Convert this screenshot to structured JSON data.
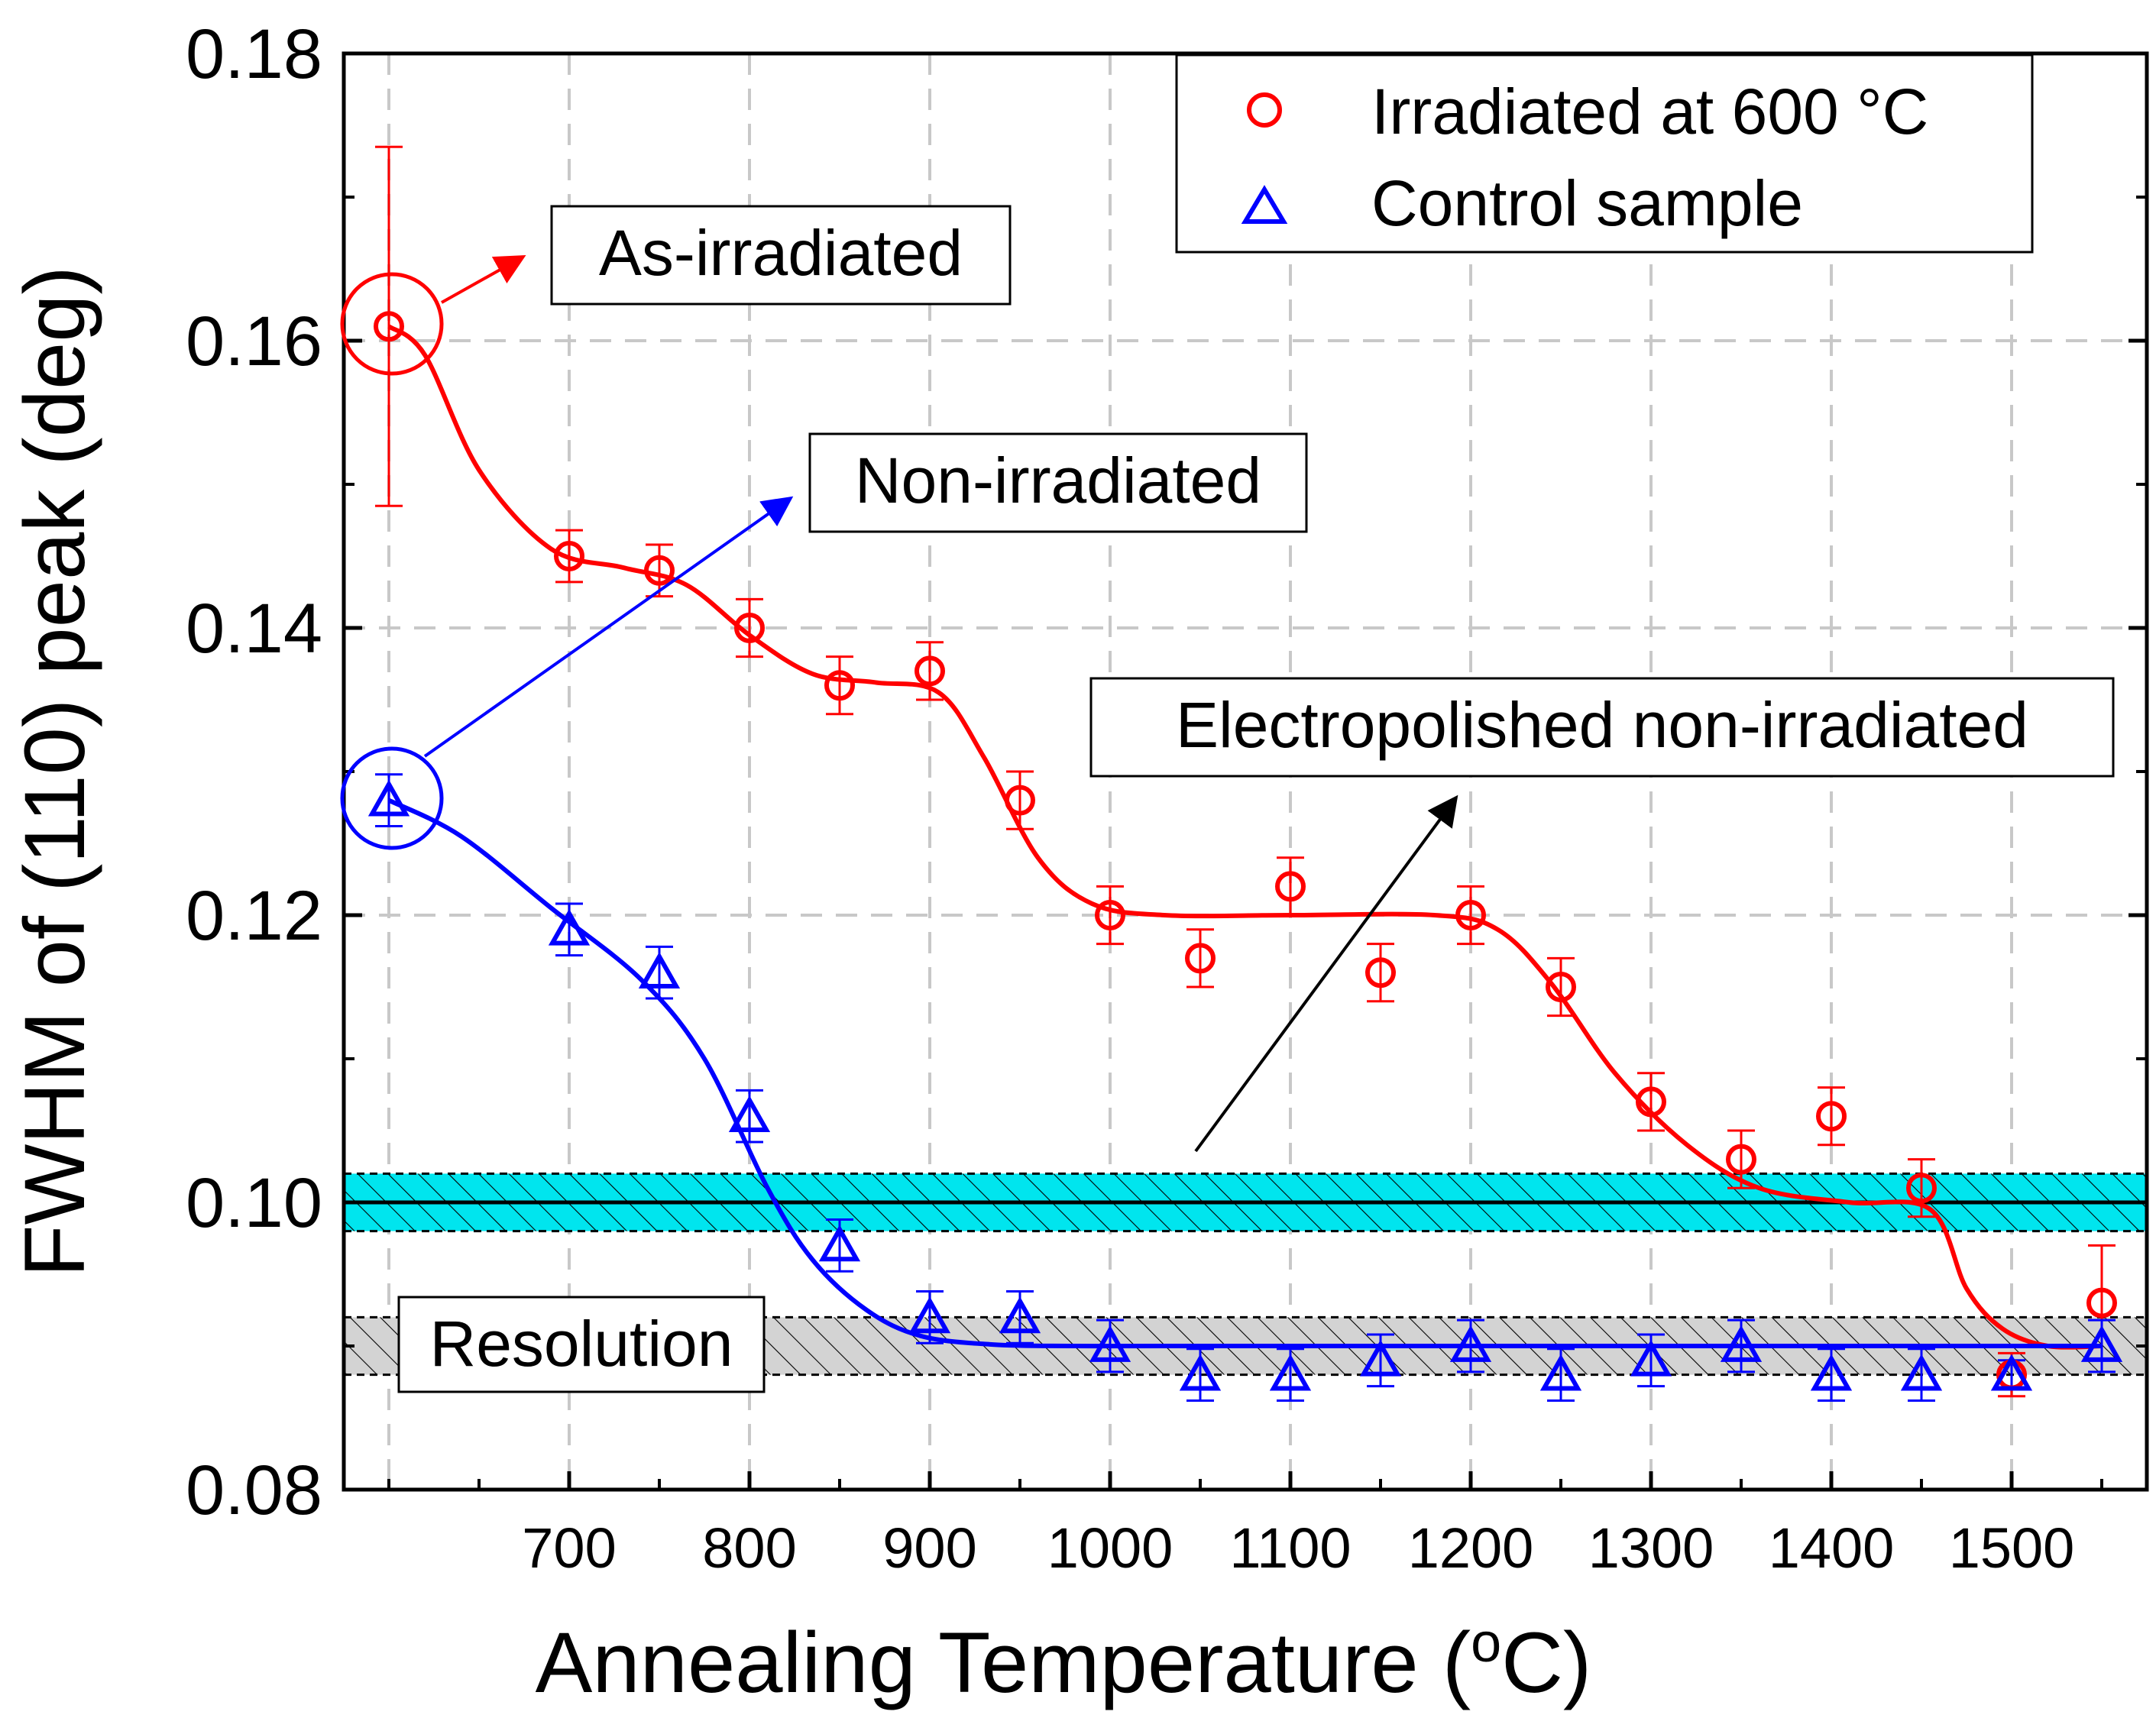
{
  "chart_data": {
    "type": "scatter",
    "xlabel": "Annealing Temperature (",
    "xlabel_sup": "o",
    "xlabel_end": "C)",
    "ylabel": "FWHM of (110) peak (deg)",
    "xlim": [
      575,
      1575
    ],
    "ylim": [
      0.08,
      0.18
    ],
    "x_ticks": [
      700,
      800,
      900,
      1000,
      1100,
      1200,
      1300,
      1400,
      1500
    ],
    "x_tick_labels": [
      "700",
      "800",
      "900",
      "1000",
      "1100",
      "1200",
      "1300",
      "1400",
      "1500"
    ],
    "y_ticks": [
      0.08,
      0.1,
      0.12,
      0.14,
      0.16,
      0.18
    ],
    "y_tick_labels": [
      "0.08",
      "0.10",
      "0.12",
      "0.14",
      "0.16",
      "0.18"
    ],
    "grid": true,
    "legend_position": "top-right",
    "series": [
      {
        "name": "Irradiated at 600 °C",
        "marker": "circle",
        "color": "#ff0000",
        "x": [
          600,
          700,
          750,
          800,
          850,
          900,
          950,
          1000,
          1050,
          1100,
          1150,
          1200,
          1250,
          1300,
          1350,
          1400,
          1450,
          1500,
          1550
        ],
        "y": [
          0.161,
          0.145,
          0.144,
          0.14,
          0.136,
          0.137,
          0.128,
          0.12,
          0.117,
          0.122,
          0.116,
          0.12,
          0.115,
          0.107,
          0.103,
          0.106,
          0.101,
          0.088,
          0.093
        ],
        "err": [
          0.0125,
          0.0018,
          0.0018,
          0.002,
          0.002,
          0.002,
          0.002,
          0.002,
          0.002,
          0.002,
          0.002,
          0.002,
          0.002,
          0.002,
          0.002,
          0.002,
          0.002,
          0.0015,
          0.004
        ],
        "fit_x": [
          600,
          620,
          650,
          690,
          730,
          765,
          800,
          835,
          870,
          905,
          930,
          960,
          990,
          1030,
          1100,
          1180,
          1215,
          1245,
          1280,
          1320,
          1360,
          1410,
          1455,
          1475,
          1495,
          1520,
          1550
        ],
        "fit_y": [
          0.161,
          0.159,
          0.151,
          0.1455,
          0.1442,
          0.143,
          0.1395,
          0.1368,
          0.1362,
          0.1355,
          0.131,
          0.124,
          0.1208,
          0.12,
          0.12,
          0.12,
          0.119,
          0.1152,
          0.109,
          0.104,
          0.101,
          0.1,
          0.0995,
          0.094,
          0.0912,
          0.09,
          0.09
        ]
      },
      {
        "name": "Control sample",
        "marker": "triangle",
        "color": "#0000ff",
        "x": [
          600,
          700,
          750,
          800,
          850,
          900,
          950,
          1000,
          1050,
          1100,
          1150,
          1200,
          1250,
          1300,
          1350,
          1400,
          1450,
          1500,
          1550
        ],
        "y": [
          0.128,
          0.119,
          0.116,
          0.106,
          0.097,
          0.092,
          0.092,
          0.09,
          0.088,
          0.088,
          0.089,
          0.09,
          0.088,
          0.089,
          0.09,
          0.088,
          0.088,
          0.088,
          0.09
        ],
        "err": [
          0.0018,
          0.0018,
          0.0018,
          0.0018,
          0.0018,
          0.0018,
          0.0018,
          0.0018,
          0.0018,
          0.0018,
          0.0018,
          0.0018,
          0.0018,
          0.0018,
          0.0018,
          0.0018,
          0.0018,
          0.001,
          0.0018
        ],
        "fit_x": [
          600,
          640,
          690,
          740,
          775,
          810,
          835,
          865,
          895,
          935,
          980,
          1040,
          1200,
          1400,
          1550
        ],
        "fit_y": [
          0.128,
          0.1255,
          0.1205,
          0.1155,
          0.11,
          0.101,
          0.096,
          0.0925,
          0.0907,
          0.0901,
          0.09,
          0.09,
          0.09,
          0.09,
          0.09
        ]
      }
    ],
    "bands": [
      {
        "name": "Electropolished non-irradiated",
        "center": 0.1,
        "low": 0.098,
        "high": 0.102,
        "fill": "#00e5ee"
      },
      {
        "name": "Resolution",
        "center": 0.09,
        "low": 0.088,
        "high": 0.092,
        "fill": "#d3d3d3"
      }
    ],
    "annotations": {
      "as_irradiated": "As-irradiated",
      "non_irradiated": "Non-irradiated",
      "electropolished": "Electropolished non-irradiated",
      "resolution": "Resolution"
    }
  }
}
